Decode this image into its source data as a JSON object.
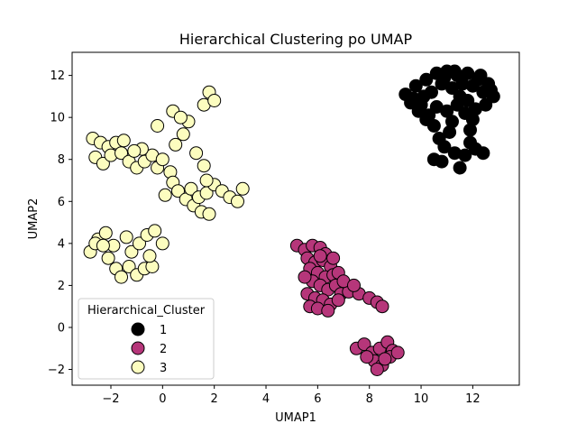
{
  "chart_data": {
    "type": "scatter",
    "title": "Hierarchical Clustering po UMAP",
    "xlabel": "UMAP1",
    "ylabel": "UMAP2",
    "xlim": [
      -3.5,
      13.8
    ],
    "ylim": [
      -2.75,
      13.1
    ],
    "xticks": [
      -2,
      0,
      2,
      4,
      6,
      8,
      10,
      12
    ],
    "yticks": [
      -2,
      0,
      2,
      4,
      6,
      8,
      10,
      12
    ],
    "xtick_labels": [
      "−2",
      "0",
      "2",
      "4",
      "6",
      "8",
      "10",
      "12"
    ],
    "ytick_labels": [
      "−2",
      "0",
      "2",
      "4",
      "6",
      "8",
      "10",
      "12"
    ],
    "grid": false,
    "legend": {
      "title": "Hierarchical_Cluster",
      "placement": "lower-left",
      "entries": [
        "1",
        "2",
        "3"
      ]
    },
    "series": [
      {
        "name": "1",
        "color": "#000000",
        "points": [
          [
            9.4,
            11.1
          ],
          [
            9.8,
            11.5
          ],
          [
            10.0,
            10.6
          ],
          [
            10.2,
            11.8
          ],
          [
            10.4,
            11.2
          ],
          [
            10.6,
            12.1
          ],
          [
            10.8,
            11.6
          ],
          [
            11.0,
            12.2
          ],
          [
            11.2,
            11.4
          ],
          [
            11.4,
            12.0
          ],
          [
            11.6,
            11.6
          ],
          [
            11.8,
            12.1
          ],
          [
            12.0,
            11.5
          ],
          [
            12.2,
            11.8
          ],
          [
            12.4,
            11.2
          ],
          [
            12.6,
            11.6
          ],
          [
            12.8,
            11.0
          ],
          [
            12.5,
            10.6
          ],
          [
            12.1,
            10.4
          ],
          [
            11.8,
            10.8
          ],
          [
            11.4,
            10.6
          ],
          [
            11.0,
            10.3
          ],
          [
            10.6,
            10.5
          ],
          [
            10.3,
            10.1
          ],
          [
            9.9,
            10.3
          ],
          [
            9.6,
            10.7
          ],
          [
            10.5,
            9.6
          ],
          [
            10.7,
            9.0
          ],
          [
            10.9,
            8.6
          ],
          [
            11.1,
            9.3
          ],
          [
            11.3,
            8.3
          ],
          [
            11.5,
            7.6
          ],
          [
            11.7,
            8.2
          ],
          [
            11.9,
            8.8
          ],
          [
            12.1,
            8.5
          ],
          [
            12.4,
            8.3
          ],
          [
            10.5,
            8.0
          ],
          [
            10.8,
            7.9
          ],
          [
            11.2,
            9.8
          ],
          [
            12.0,
            9.9
          ],
          [
            10.1,
            11.0
          ],
          [
            11.5,
            11.0
          ],
          [
            12.3,
            12.0
          ],
          [
            10.9,
            11.9
          ],
          [
            11.7,
            10.2
          ],
          [
            9.7,
            10.9
          ],
          [
            12.7,
            11.3
          ],
          [
            11.3,
            12.2
          ],
          [
            10.2,
            9.9
          ],
          [
            11.9,
            9.4
          ]
        ]
      },
      {
        "name": "2",
        "color": "#b6367a",
        "points": [
          [
            5.2,
            3.9
          ],
          [
            5.5,
            3.7
          ],
          [
            5.8,
            3.9
          ],
          [
            6.1,
            3.8
          ],
          [
            6.3,
            3.5
          ],
          [
            5.6,
            3.3
          ],
          [
            5.9,
            3.1
          ],
          [
            6.2,
            3.2
          ],
          [
            6.5,
            2.9
          ],
          [
            5.7,
            2.8
          ],
          [
            6.0,
            2.6
          ],
          [
            6.3,
            2.4
          ],
          [
            6.6,
            2.5
          ],
          [
            5.8,
            2.2
          ],
          [
            6.1,
            2.0
          ],
          [
            6.4,
            1.8
          ],
          [
            6.7,
            2.0
          ],
          [
            5.6,
            1.6
          ],
          [
            5.9,
            1.4
          ],
          [
            6.2,
            1.3
          ],
          [
            6.5,
            1.1
          ],
          [
            5.7,
            1.0
          ],
          [
            6.0,
            0.9
          ],
          [
            6.4,
            0.8
          ],
          [
            6.9,
            1.6
          ],
          [
            7.2,
            1.7
          ],
          [
            7.6,
            1.6
          ],
          [
            8.0,
            1.4
          ],
          [
            8.3,
            1.2
          ],
          [
            8.5,
            1.0
          ],
          [
            6.8,
            2.6
          ],
          [
            7.0,
            2.2
          ],
          [
            6.6,
            3.3
          ],
          [
            5.5,
            2.4
          ],
          [
            7.4,
            2.0
          ],
          [
            7.5,
            -1.0
          ],
          [
            7.8,
            -0.8
          ],
          [
            8.1,
            -1.2
          ],
          [
            8.4,
            -1.0
          ],
          [
            8.7,
            -0.7
          ],
          [
            8.9,
            -1.1
          ],
          [
            8.2,
            -1.6
          ],
          [
            8.5,
            -1.8
          ],
          [
            8.8,
            -1.4
          ],
          [
            8.3,
            -2.0
          ],
          [
            7.9,
            -1.4
          ],
          [
            9.1,
            -1.2
          ],
          [
            8.6,
            -1.5
          ],
          [
            6.8,
            1.3
          ],
          [
            6.1,
            3.4
          ]
        ]
      },
      {
        "name": "3",
        "color": "#fcfdbf",
        "points": [
          [
            -2.7,
            9.0
          ],
          [
            -2.4,
            8.8
          ],
          [
            -2.1,
            8.6
          ],
          [
            -1.8,
            8.8
          ],
          [
            -1.5,
            8.9
          ],
          [
            -2.6,
            8.1
          ],
          [
            -2.3,
            7.8
          ],
          [
            -2.0,
            8.2
          ],
          [
            -1.6,
            8.3
          ],
          [
            -1.3,
            7.9
          ],
          [
            -1.0,
            7.6
          ],
          [
            -0.7,
            7.9
          ],
          [
            -0.4,
            8.2
          ],
          [
            -0.8,
            8.5
          ],
          [
            -1.1,
            8.4
          ],
          [
            -0.2,
            7.6
          ],
          [
            0.0,
            8.0
          ],
          [
            0.3,
            7.4
          ],
          [
            0.4,
            6.9
          ],
          [
            0.6,
            6.5
          ],
          [
            0.9,
            6.1
          ],
          [
            1.2,
            5.8
          ],
          [
            1.5,
            5.5
          ],
          [
            1.8,
            5.4
          ],
          [
            1.1,
            6.6
          ],
          [
            1.4,
            6.2
          ],
          [
            1.7,
            6.4
          ],
          [
            2.0,
            6.8
          ],
          [
            2.3,
            6.5
          ],
          [
            2.6,
            6.2
          ],
          [
            2.9,
            6.0
          ],
          [
            3.1,
            6.6
          ],
          [
            0.5,
            8.7
          ],
          [
            0.8,
            9.2
          ],
          [
            1.0,
            9.8
          ],
          [
            0.4,
            10.3
          ],
          [
            0.7,
            10.0
          ],
          [
            -0.2,
            9.6
          ],
          [
            1.3,
            8.3
          ],
          [
            1.6,
            7.7
          ],
          [
            1.6,
            10.6
          ],
          [
            1.8,
            11.2
          ],
          [
            2.0,
            10.8
          ],
          [
            1.7,
            7.0
          ],
          [
            0.1,
            6.3
          ],
          [
            -2.8,
            3.6
          ],
          [
            -2.5,
            4.2
          ],
          [
            -2.2,
            4.5
          ],
          [
            -2.6,
            4.0
          ],
          [
            -1.9,
            3.9
          ],
          [
            -2.1,
            3.3
          ],
          [
            -1.8,
            2.8
          ],
          [
            -1.6,
            2.4
          ],
          [
            -1.3,
            2.9
          ],
          [
            -1.0,
            2.5
          ],
          [
            -0.7,
            2.8
          ],
          [
            -0.4,
            2.9
          ],
          [
            -1.2,
            3.6
          ],
          [
            -0.9,
            4.0
          ],
          [
            -0.6,
            4.4
          ],
          [
            -0.3,
            4.6
          ],
          [
            0.0,
            4.0
          ],
          [
            -0.5,
            3.4
          ],
          [
            -1.4,
            4.3
          ],
          [
            -2.3,
            3.9
          ]
        ]
      }
    ]
  }
}
